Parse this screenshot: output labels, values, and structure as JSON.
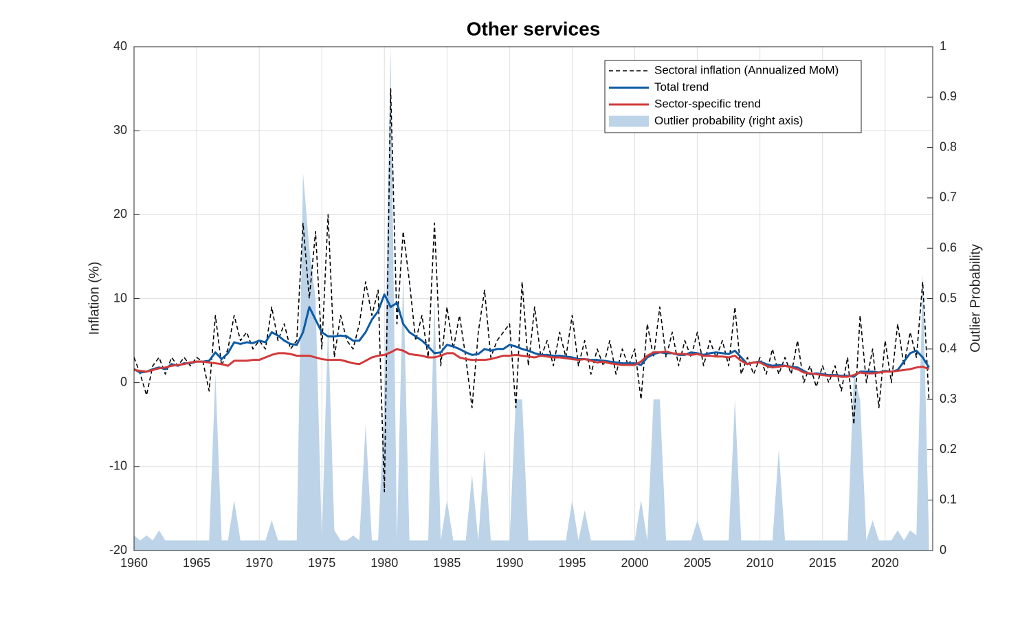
{
  "chart_data": {
    "type": "line",
    "title": "Other services",
    "ylabel": "Inflation (%)",
    "y2label": "Outlier Probability",
    "x": [
      1960,
      1960.5,
      1961,
      1961.5,
      1962,
      1962.5,
      1963,
      1963.5,
      1964,
      1964.5,
      1965,
      1965.5,
      1966,
      1966.5,
      1967,
      1967.5,
      1968,
      1968.5,
      1969,
      1969.5,
      1970,
      1970.5,
      1971,
      1971.5,
      1972,
      1972.5,
      1973,
      1973.5,
      1974,
      1974.5,
      1975,
      1975.5,
      1976,
      1976.5,
      1977,
      1977.5,
      1978,
      1978.5,
      1979,
      1979.5,
      1980,
      1980.5,
      1981,
      1981.5,
      1982,
      1982.5,
      1983,
      1983.5,
      1984,
      1984.5,
      1985,
      1985.5,
      1986,
      1986.5,
      1987,
      1987.5,
      1988,
      1988.5,
      1989,
      1989.5,
      1990,
      1990.5,
      1991,
      1991.5,
      1992,
      1992.5,
      1993,
      1993.5,
      1994,
      1994.5,
      1995,
      1995.5,
      1996,
      1996.5,
      1997,
      1997.5,
      1998,
      1998.5,
      1999,
      1999.5,
      2000,
      2000.5,
      2001,
      2001.5,
      2002,
      2002.5,
      2003,
      2003.5,
      2004,
      2004.5,
      2005,
      2005.5,
      2006,
      2006.5,
      2007,
      2007.5,
      2008,
      2008.5,
      2009,
      2009.5,
      2010,
      2010.5,
      2011,
      2011.5,
      2012,
      2012.5,
      2013,
      2013.5,
      2014,
      2014.5,
      2015,
      2015.5,
      2016,
      2016.5,
      2017,
      2017.5,
      2018,
      2018.5,
      2019,
      2019.5,
      2020,
      2020.5,
      2021,
      2021.5,
      2022,
      2022.5,
      2023,
      2023.5
    ],
    "series": [
      {
        "name": "Outlier probability (right axis)",
        "kind": "area",
        "axis": "y2",
        "color": "#bcd3e8",
        "values": [
          0.03,
          0.02,
          0.03,
          0.02,
          0.04,
          0.02,
          0.02,
          0.02,
          0.02,
          0.02,
          0.02,
          0.02,
          0.02,
          0.35,
          0.02,
          0.02,
          0.1,
          0.02,
          0.02,
          0.02,
          0.02,
          0.02,
          0.06,
          0.02,
          0.02,
          0.02,
          0.02,
          0.75,
          0.6,
          0.5,
          0.02,
          0.45,
          0.04,
          0.02,
          0.02,
          0.03,
          0.02,
          0.25,
          0.02,
          0.02,
          0.3,
          1,
          0.02,
          0.55,
          0.02,
          0.02,
          0.02,
          0.02,
          0.5,
          0.02,
          0.1,
          0.02,
          0.02,
          0.02,
          0.15,
          0.02,
          0.2,
          0.02,
          0.02,
          0.02,
          0.02,
          0.3,
          0.3,
          0.02,
          0.02,
          0.02,
          0.02,
          0.02,
          0.02,
          0.02,
          0.1,
          0.02,
          0.08,
          0.02,
          0.02,
          0.02,
          0.02,
          0.02,
          0.02,
          0.02,
          0.02,
          0.1,
          0.02,
          0.3,
          0.3,
          0.02,
          0.02,
          0.02,
          0.02,
          0.02,
          0.06,
          0.02,
          0.02,
          0.02,
          0.02,
          0.02,
          0.3,
          0.02,
          0.02,
          0.02,
          0.02,
          0.02,
          0.02,
          0.2,
          0.02,
          0.02,
          0.02,
          0.02,
          0.02,
          0.02,
          0.02,
          0.02,
          0.02,
          0.02,
          0.02,
          0.35,
          0.3,
          0.02,
          0.06,
          0.02,
          0.02,
          0.02,
          0.04,
          0.02,
          0.04,
          0.03,
          0.55,
          0.02
        ]
      },
      {
        "name": "Sectoral inflation (Annualized MoM)",
        "kind": "line",
        "dashed": true,
        "width": 1.6,
        "color": "#000000",
        "values": [
          3,
          1,
          -1.5,
          2,
          3,
          1,
          3,
          2,
          3,
          2,
          3,
          2.5,
          -1,
          8,
          2,
          4,
          8,
          5,
          6,
          4,
          5,
          4,
          9,
          5,
          7,
          4,
          5,
          19,
          10,
          18,
          4,
          20,
          3,
          8,
          5,
          4,
          7,
          12,
          8,
          11,
          -13,
          35,
          7,
          18,
          12,
          5,
          8,
          3,
          19,
          2,
          9,
          4,
          8,
          3,
          -3,
          6,
          11,
          3,
          5,
          6,
          7,
          -3,
          12,
          2,
          9,
          3,
          5,
          2,
          6,
          3,
          8,
          2,
          5,
          1,
          4,
          2,
          5,
          1,
          4,
          2,
          4,
          -2,
          7,
          3,
          9,
          3,
          6,
          2,
          5,
          3,
          6,
          2,
          5,
          3,
          5,
          2,
          9,
          1,
          3,
          1,
          3,
          1,
          4,
          1,
          3,
          1,
          5,
          0,
          2,
          -0.5,
          2,
          0,
          2,
          -1,
          3,
          -5,
          8,
          0,
          4,
          -3,
          5,
          0,
          7,
          2,
          6,
          3,
          12,
          -2
        ]
      },
      {
        "name": "Total trend",
        "kind": "line",
        "width": 3,
        "color": "#0d5ba5",
        "values": [
          1.6,
          1.2,
          1.3,
          1.6,
          1.8,
          1.6,
          2.2,
          2.0,
          2.3,
          2.3,
          2.5,
          2.5,
          2.6,
          3.6,
          2.8,
          3.5,
          4.8,
          4.6,
          4.8,
          4.7,
          5.0,
          4.8,
          6.0,
          5.6,
          5.0,
          4.6,
          4.5,
          6.0,
          9.0,
          7.5,
          6.0,
          5.5,
          5.5,
          5.6,
          5.5,
          5.0,
          5.0,
          6.0,
          7.5,
          8.5,
          10.5,
          9.0,
          9.5,
          7.0,
          6.0,
          5.5,
          5.0,
          4.3,
          3.5,
          3.6,
          4.5,
          4.3,
          4.0,
          3.6,
          3.3,
          3.4,
          4.0,
          3.8,
          4.0,
          4.0,
          4.5,
          4.3,
          4.0,
          3.8,
          3.5,
          3.3,
          3.3,
          3.2,
          3.2,
          3.1,
          3.0,
          2.8,
          2.8,
          2.7,
          2.7,
          2.6,
          2.5,
          2.4,
          2.3,
          2.3,
          2.3,
          2.1,
          3.0,
          3.4,
          3.6,
          3.5,
          3.5,
          3.3,
          3.3,
          3.6,
          3.5,
          3.3,
          3.5,
          3.6,
          3.5,
          3.4,
          3.8,
          3.0,
          2.2,
          2.4,
          2.5,
          2.2,
          2.0,
          2.1,
          2.0,
          1.9,
          1.8,
          1.4,
          1.0,
          1.1,
          1.0,
          0.9,
          0.9,
          0.8,
          0.8,
          0.7,
          1.3,
          1.3,
          1.3,
          1.2,
          1.4,
          1.3,
          1.5,
          2.5,
          3.5,
          3.8,
          3.0,
          1.8
        ]
      },
      {
        "name": "Sector-specific trend",
        "kind": "line",
        "width": 3,
        "color": "#d23a3a",
        "values": [
          1.5,
          1.4,
          1.3,
          1.5,
          1.7,
          1.8,
          2.0,
          2.1,
          2.2,
          2.4,
          2.5,
          2.5,
          2.4,
          2.3,
          2.2,
          2.0,
          2.6,
          2.6,
          2.6,
          2.7,
          2.7,
          3.0,
          3.3,
          3.5,
          3.5,
          3.4,
          3.2,
          3.2,
          3.2,
          3.0,
          2.8,
          2.7,
          2.7,
          2.7,
          2.5,
          2.3,
          2.2,
          2.6,
          3.0,
          3.2,
          3.3,
          3.6,
          4.0,
          3.8,
          3.4,
          3.3,
          3.2,
          3.0,
          3.0,
          3.2,
          3.5,
          3.5,
          3.0,
          2.8,
          2.7,
          2.7,
          2.7,
          2.8,
          3.0,
          3.2,
          3.2,
          3.3,
          3.2,
          3.1,
          3.0,
          3.2,
          3.1,
          3.0,
          3.0,
          2.9,
          2.8,
          2.7,
          2.8,
          2.6,
          2.4,
          2.5,
          2.3,
          2.2,
          2.1,
          2.1,
          2.1,
          2.5,
          3.2,
          3.6,
          3.6,
          3.7,
          3.5,
          3.4,
          3.4,
          3.3,
          3.4,
          3.2,
          3.2,
          3.1,
          3.1,
          3.0,
          3.2,
          2.6,
          2.2,
          2.4,
          2.4,
          2.0,
          1.8,
          1.9,
          2.0,
          1.8,
          1.6,
          1.2,
          1.1,
          1.0,
          0.9,
          0.8,
          0.8,
          0.7,
          0.7,
          0.9,
          1.2,
          1.1,
          1.1,
          1.2,
          1.3,
          1.3,
          1.4,
          1.5,
          1.6,
          1.8,
          1.9,
          1.6
        ]
      }
    ],
    "legend_order": [
      1,
      2,
      3,
      0
    ],
    "xlim": [
      1960,
      2023.8
    ],
    "xticks": [
      1960,
      1965,
      1970,
      1975,
      1980,
      1985,
      1990,
      1995,
      2000,
      2005,
      2010,
      2015,
      2020
    ],
    "ylim": [
      -20,
      40
    ],
    "yticks": [
      -20,
      -10,
      0,
      10,
      20,
      30,
      40
    ],
    "y2lim": [
      0,
      1
    ],
    "y2ticks": [
      0,
      0.1,
      0.2,
      0.3,
      0.4,
      0.5,
      0.6,
      0.7,
      0.8,
      0.9,
      1
    ],
    "grid": true,
    "legend": "upper right"
  }
}
